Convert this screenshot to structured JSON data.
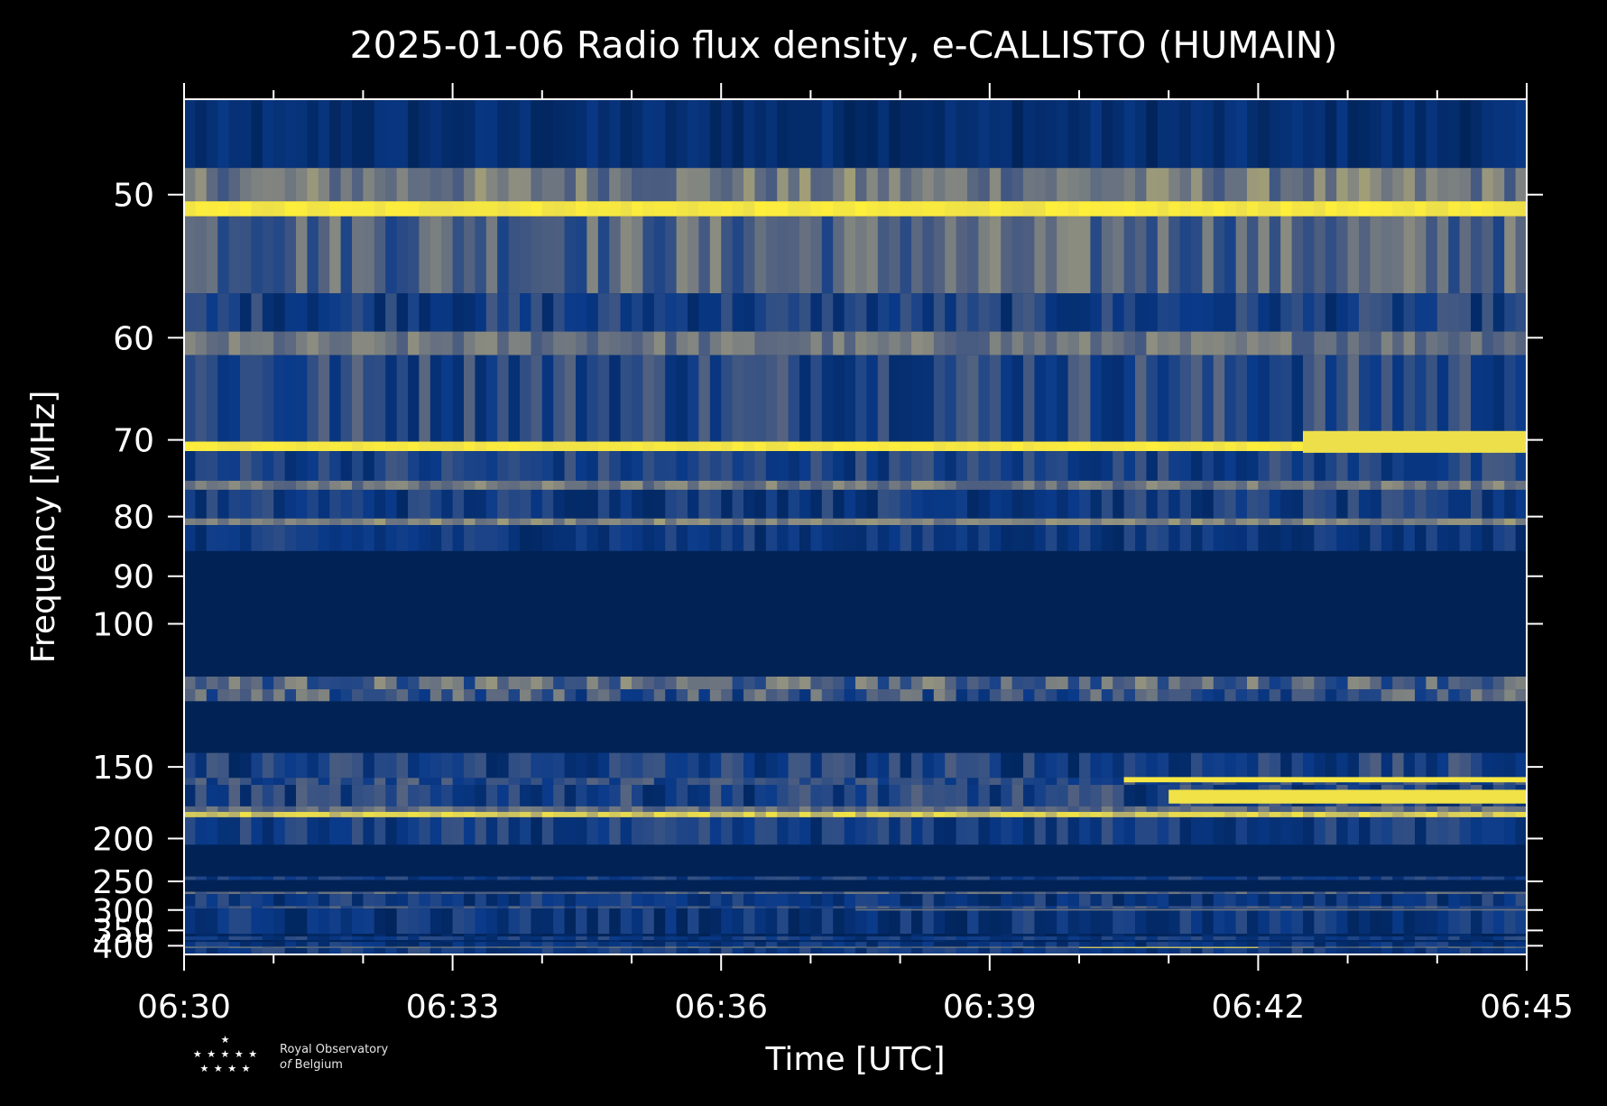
{
  "chart_data": {
    "type": "heatmap",
    "title": "2025-01-06 Radio flux density, e-CALLISTO (HUMAIN)",
    "xlabel": "Time [UTC]",
    "ylabel": "Frequency [MHz]",
    "x_ticks": [
      "06:30",
      "06:33",
      "06:36",
      "06:39",
      "06:42",
      "06:45"
    ],
    "x_range": [
      "06:30",
      "06:45"
    ],
    "y_ticks": [
      50,
      60,
      70,
      80,
      90,
      100,
      150,
      200,
      250,
      300,
      350,
      400
    ],
    "y_range": [
      45,
      435
    ],
    "y_scale": "reciprocal",
    "colormap": [
      "#002255",
      "#0a3a8a",
      "#4f5f80",
      "#8f8f80",
      "#d9cf5a",
      "#ffef3a"
    ],
    "bands": [
      {
        "f1": 45,
        "f2": 48.5,
        "level": 0.1,
        "noise": 0.08
      },
      {
        "f1": 48.5,
        "f2": 50.4,
        "level": 0.5,
        "noise": 0.15
      },
      {
        "f1": 50.4,
        "f2": 51.3,
        "level": 0.95,
        "noise": 0.05
      },
      {
        "f1": 51.3,
        "f2": 56.5,
        "level": 0.42,
        "noise": 0.18
      },
      {
        "f1": 56.5,
        "f2": 59.5,
        "level": 0.22,
        "noise": 0.15
      },
      {
        "f1": 59.5,
        "f2": 61.5,
        "level": 0.48,
        "noise": 0.12
      },
      {
        "f1": 61.5,
        "f2": 70.2,
        "level": 0.28,
        "noise": 0.18
      },
      {
        "f1": 70.2,
        "f2": 71.3,
        "level": 0.95,
        "noise": 0.04
      },
      {
        "f1": 71.3,
        "f2": 75.0,
        "level": 0.24,
        "noise": 0.14
      },
      {
        "f1": 75.0,
        "f2": 76.2,
        "level": 0.5,
        "noise": 0.12
      },
      {
        "f1": 76.2,
        "f2": 80.3,
        "level": 0.2,
        "noise": 0.14
      },
      {
        "f1": 80.3,
        "f2": 81.3,
        "level": 0.55,
        "noise": 0.1
      },
      {
        "f1": 81.3,
        "f2": 85.5,
        "level": 0.18,
        "noise": 0.12
      },
      {
        "f1": 85.5,
        "f2": 114.0,
        "level": 0.0,
        "noise": 0.0
      },
      {
        "f1": 114.0,
        "f2": 118.0,
        "level": 0.42,
        "noise": 0.2
      },
      {
        "f1": 118.0,
        "f2": 122.0,
        "level": 0.35,
        "noise": 0.22
      },
      {
        "f1": 122.0,
        "f2": 143.0,
        "level": 0.0,
        "noise": 0.0
      },
      {
        "f1": 143.0,
        "f2": 156.0,
        "level": 0.22,
        "noise": 0.18
      },
      {
        "f1": 156.0,
        "f2": 160.0,
        "level": 0.3,
        "noise": 0.15
      },
      {
        "f1": 160.0,
        "f2": 174.0,
        "level": 0.24,
        "noise": 0.18
      },
      {
        "f1": 174.0,
        "f2": 178.0,
        "level": 0.45,
        "noise": 0.1
      },
      {
        "f1": 178.0,
        "f2": 182.0,
        "level": 0.8,
        "noise": 0.12
      },
      {
        "f1": 182.0,
        "f2": 206.0,
        "level": 0.2,
        "noise": 0.14
      },
      {
        "f1": 206.0,
        "f2": 243.0,
        "level": 0.0,
        "noise": 0.0
      },
      {
        "f1": 243.0,
        "f2": 248.0,
        "level": 0.22,
        "noise": 0.12
      },
      {
        "f1": 248.0,
        "f2": 266.0,
        "level": 0.0,
        "noise": 0.0
      },
      {
        "f1": 266.0,
        "f2": 270.0,
        "level": 0.42,
        "noise": 0.1
      },
      {
        "f1": 270.0,
        "f2": 292.0,
        "level": 0.18,
        "noise": 0.14
      },
      {
        "f1": 292.0,
        "f2": 297.0,
        "level": 0.32,
        "noise": 0.12
      },
      {
        "f1": 297.0,
        "f2": 360.0,
        "level": 0.16,
        "noise": 0.14
      },
      {
        "f1": 360.0,
        "f2": 368.0,
        "level": 0.05,
        "noise": 0.06
      },
      {
        "f1": 368.0,
        "f2": 380.0,
        "level": 0.2,
        "noise": 0.12
      },
      {
        "f1": 380.0,
        "f2": 386.0,
        "level": 0.05,
        "noise": 0.05
      },
      {
        "f1": 386.0,
        "f2": 404.0,
        "level": 0.16,
        "noise": 0.12
      },
      {
        "f1": 404.0,
        "f2": 408.0,
        "level": 0.55,
        "noise": 0.1
      },
      {
        "f1": 408.0,
        "f2": 435.0,
        "level": 0.2,
        "noise": 0.14
      }
    ],
    "bursts": [
      {
        "f1": 155.5,
        "f2": 158.5,
        "t_start": "06:40:30",
        "t_end": "06:45",
        "level": 0.95
      },
      {
        "f1": 163.0,
        "f2": 172.0,
        "t_start": "06:41:00",
        "t_end": "06:45",
        "level": 0.92
      },
      {
        "f1": 69.0,
        "f2": 71.5,
        "t_start": "06:42:30",
        "t_end": "06:45",
        "level": 0.9
      },
      {
        "f1": 298.0,
        "f2": 301.0,
        "t_start": "06:37:30",
        "t_end": "06:45",
        "level": 0.5
      },
      {
        "f1": 404.0,
        "f2": 409.0,
        "t_start": "06:40:00",
        "t_end": "06:42:00",
        "level": 0.75
      }
    ]
  },
  "logo": {
    "line1": "Royal Observatory",
    "line2_prefix": "of",
    "line2_rest": "Belgium"
  }
}
